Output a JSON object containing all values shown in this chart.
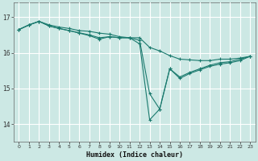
{
  "xlabel": "Humidex (Indice chaleur)",
  "background_color": "#cce8e4",
  "grid_color": "#ffffff",
  "line_color": "#1a7a6e",
  "xlim": [
    -0.5,
    23.5
  ],
  "ylim": [
    13.5,
    17.4
  ],
  "yticks": [
    14,
    15,
    16,
    17
  ],
  "xticks": [
    0,
    1,
    2,
    3,
    4,
    5,
    6,
    7,
    8,
    9,
    10,
    11,
    12,
    13,
    14,
    15,
    16,
    17,
    18,
    19,
    20,
    21,
    22,
    23
  ],
  "line1_x": [
    0,
    1,
    2,
    3,
    4,
    5,
    6,
    7,
    8,
    9,
    10,
    11,
    12,
    13,
    14,
    15,
    16,
    17,
    18,
    19,
    20,
    21,
    22,
    23
  ],
  "line1_y": [
    16.65,
    16.78,
    16.88,
    16.78,
    16.72,
    16.68,
    16.62,
    16.6,
    16.55,
    16.52,
    16.45,
    16.42,
    16.42,
    16.15,
    16.05,
    15.92,
    15.82,
    15.8,
    15.78,
    15.78,
    15.82,
    15.82,
    15.85,
    15.9
  ],
  "line2_x": [
    0,
    1,
    2,
    3,
    4,
    5,
    6,
    7,
    8,
    9,
    10,
    11,
    12,
    13,
    14,
    15,
    16,
    17,
    18,
    19,
    20,
    21,
    22,
    23
  ],
  "line2_y": [
    16.65,
    16.78,
    16.88,
    16.75,
    16.68,
    16.62,
    16.56,
    16.5,
    16.42,
    16.45,
    16.42,
    16.42,
    16.35,
    14.85,
    14.42,
    15.55,
    15.32,
    15.45,
    15.55,
    15.65,
    15.72,
    15.75,
    15.82,
    15.9
  ],
  "line3_x": [
    0,
    1,
    2,
    3,
    4,
    5,
    6,
    7,
    8,
    9,
    10,
    11,
    12,
    13,
    14,
    15,
    16,
    17,
    18,
    19,
    20,
    21,
    22,
    23
  ],
  "line3_y": [
    16.65,
    16.78,
    16.88,
    16.75,
    16.68,
    16.62,
    16.55,
    16.48,
    16.38,
    16.45,
    16.42,
    16.42,
    16.25,
    14.12,
    14.42,
    15.55,
    15.28,
    15.42,
    15.52,
    15.62,
    15.68,
    15.72,
    15.78,
    15.9
  ]
}
